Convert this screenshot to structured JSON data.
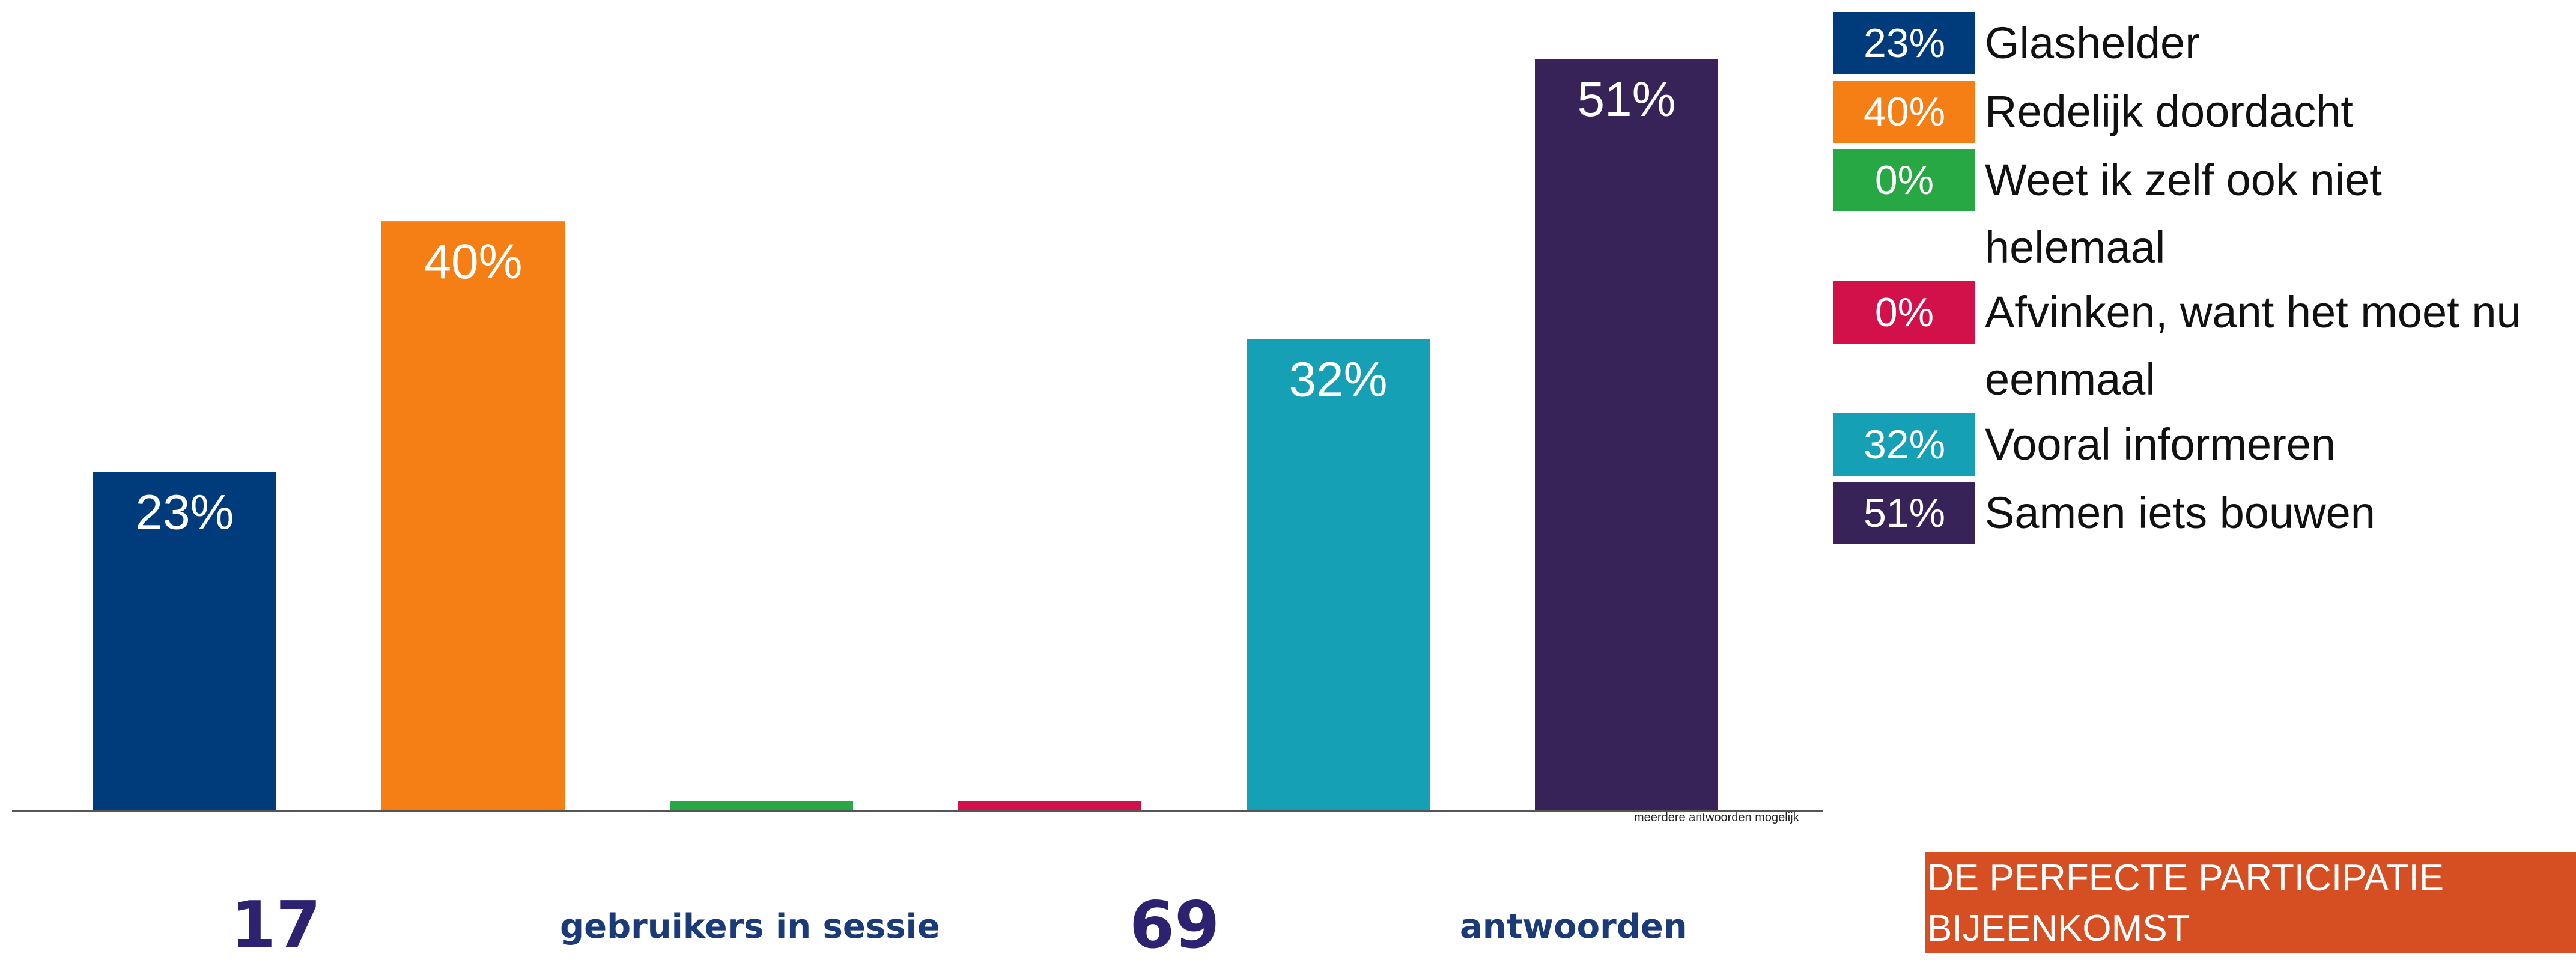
{
  "chart_data": {
    "type": "bar",
    "categories": [
      "Glashelder",
      "Redelijk doordacht",
      "Weet ik zelf ook niet helemaal",
      "Afvinken, want het moet nu eenmaal",
      "Vooral informeren",
      "Samen iets bouwen"
    ],
    "values": [
      23,
      40,
      0,
      0,
      32,
      51
    ],
    "value_labels": [
      "23%",
      "40%",
      "",
      "",
      "32%",
      "51%"
    ],
    "legend_values": [
      "23%",
      "40%",
      "0%",
      "0%",
      "32%",
      "51%"
    ],
    "colors": [
      "#003b7b",
      "#f57e15",
      "#27a844",
      "#d2114a",
      "#15a0b6",
      "#372358"
    ],
    "ylim": [
      0,
      55
    ],
    "legend_position": "top-right",
    "grid": false,
    "note": "meerdere antwoorden mogelijk"
  },
  "stats": {
    "users_count": "17",
    "users_label": "gebruikers in sessie",
    "answers_count": "69",
    "answers_label": "antwoorden"
  },
  "footer": {
    "title": "DE PERFECTE PARTICIPATIE BIJEENKOMST"
  }
}
